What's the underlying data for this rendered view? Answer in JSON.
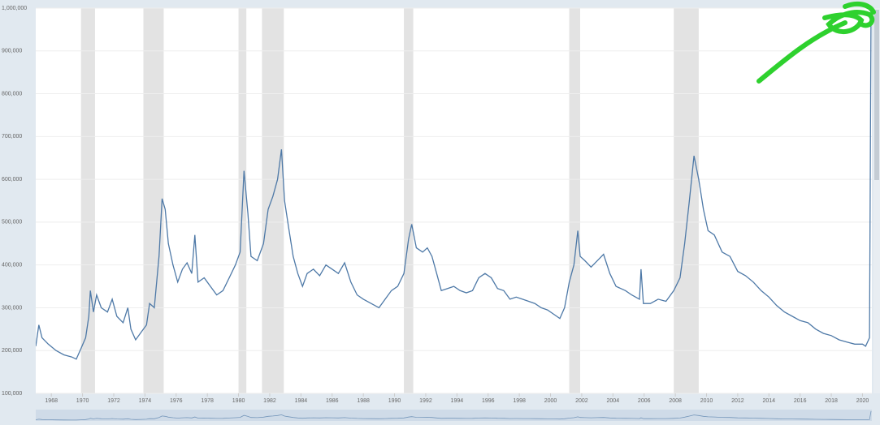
{
  "chart_data": {
    "type": "line",
    "x": [
      1967.0,
      1967.2,
      1967.4,
      1967.8,
      1968.3,
      1968.8,
      1969.3,
      1969.6,
      1969.9,
      1970.2,
      1970.4,
      1970.5,
      1970.7,
      1970.9,
      1971.2,
      1971.6,
      1971.9,
      1972.2,
      1972.6,
      1972.9,
      1973.1,
      1973.4,
      1973.8,
      1974.1,
      1974.3,
      1974.6,
      1974.9,
      1975.1,
      1975.3,
      1975.5,
      1975.8,
      1976.1,
      1976.4,
      1976.7,
      1977.0,
      1977.2,
      1977.4,
      1977.8,
      1978.2,
      1978.6,
      1979.0,
      1979.4,
      1979.8,
      1980.1,
      1980.35,
      1980.6,
      1980.8,
      1981.2,
      1981.6,
      1981.9,
      1982.2,
      1982.5,
      1982.75,
      1982.95,
      1983.2,
      1983.5,
      1983.8,
      1984.1,
      1984.4,
      1984.8,
      1985.2,
      1985.6,
      1986.0,
      1986.4,
      1986.8,
      1987.2,
      1987.6,
      1988.0,
      1988.5,
      1989.0,
      1989.4,
      1989.8,
      1990.2,
      1990.6,
      1990.9,
      1991.1,
      1991.4,
      1991.8,
      1992.1,
      1992.4,
      1992.7,
      1993.0,
      1993.4,
      1993.8,
      1994.2,
      1994.6,
      1995.0,
      1995.4,
      1995.8,
      1996.2,
      1996.6,
      1997.0,
      1997.4,
      1997.8,
      1998.2,
      1998.6,
      1999.0,
      1999.4,
      1999.8,
      2000.2,
      2000.6,
      2000.9,
      2001.2,
      2001.5,
      2001.75,
      2001.9,
      2002.2,
      2002.6,
      2003.0,
      2003.4,
      2003.8,
      2004.2,
      2004.8,
      2005.2,
      2005.7,
      2005.8,
      2005.95,
      2006.4,
      2006.9,
      2007.4,
      2007.9,
      2008.3,
      2008.6,
      2008.9,
      2009.2,
      2009.5,
      2009.8,
      2010.1,
      2010.5,
      2011.0,
      2011.5,
      2012.0,
      2012.5,
      2013.0,
      2013.5,
      2014.0,
      2014.5,
      2015.0,
      2015.5,
      2016.0,
      2016.5,
      2017.0,
      2017.5,
      2018.0,
      2018.5,
      2019.0,
      2019.5,
      2020.0,
      2020.2,
      2020.45,
      2020.55
    ],
    "series": [
      {
        "color": "#4e79a7",
        "values": [
          210000,
          260000,
          230000,
          215000,
          200000,
          190000,
          185000,
          180000,
          205000,
          230000,
          280000,
          340000,
          290000,
          330000,
          300000,
          290000,
          320000,
          280000,
          265000,
          300000,
          250000,
          225000,
          245000,
          260000,
          310000,
          300000,
          420000,
          555000,
          530000,
          450000,
          400000,
          360000,
          390000,
          405000,
          380000,
          470000,
          360000,
          370000,
          350000,
          330000,
          340000,
          370000,
          400000,
          430000,
          620000,
          520000,
          420000,
          410000,
          450000,
          530000,
          560000,
          600000,
          670000,
          550000,
          490000,
          420000,
          380000,
          350000,
          380000,
          390000,
          375000,
          400000,
          390000,
          380000,
          405000,
          360000,
          330000,
          320000,
          310000,
          300000,
          320000,
          340000,
          350000,
          380000,
          460000,
          495000,
          440000,
          430000,
          440000,
          420000,
          380000,
          340000,
          345000,
          350000,
          340000,
          335000,
          340000,
          370000,
          380000,
          370000,
          345000,
          340000,
          320000,
          325000,
          320000,
          315000,
          310000,
          300000,
          295000,
          285000,
          275000,
          300000,
          360000,
          400000,
          480000,
          420000,
          410000,
          395000,
          410000,
          425000,
          380000,
          350000,
          340000,
          330000,
          320000,
          390000,
          310000,
          310000,
          320000,
          315000,
          340000,
          370000,
          450000,
          550000,
          655000,
          600000,
          530000,
          480000,
          470000,
          430000,
          420000,
          385000,
          375000,
          360000,
          340000,
          325000,
          305000,
          290000,
          280000,
          270000,
          265000,
          250000,
          240000,
          235000,
          225000,
          220000,
          215000,
          215000,
          210000,
          230000,
          1000000
        ]
      }
    ],
    "recessions": [
      [
        1969.9,
        1970.8
      ],
      [
        1973.9,
        1975.2
      ],
      [
        1980.0,
        1980.5
      ],
      [
        1981.5,
        1982.9
      ],
      [
        1990.6,
        1991.2
      ],
      [
        2001.2,
        2001.9
      ],
      [
        2007.9,
        2009.5
      ]
    ],
    "xlim": [
      1967.0,
      2020.6
    ],
    "xticks": [
      1968,
      1970,
      1972,
      1974,
      1976,
      1978,
      1980,
      1982,
      1984,
      1986,
      1988,
      1990,
      1992,
      1994,
      1996,
      1998,
      2000,
      2002,
      2004,
      2006,
      2008,
      2010,
      2012,
      2014,
      2016,
      2018,
      2020
    ],
    "ylim": [
      100000,
      1000000
    ],
    "yticks": [
      {
        "value": 100000,
        "label": "100,000"
      },
      {
        "value": 200000,
        "label": "200,000"
      },
      {
        "value": 300000,
        "label": "300,000"
      },
      {
        "value": 400000,
        "label": "400,000"
      },
      {
        "value": 500000,
        "label": "500,000"
      },
      {
        "value": 600000,
        "label": "600,000"
      },
      {
        "value": 700000,
        "label": "700,000"
      },
      {
        "value": 800000,
        "label": "800,000"
      },
      {
        "value": 900000,
        "label": "900,000"
      },
      {
        "value": 1000000,
        "label": "1,000,000"
      }
    ],
    "grid": true
  }
}
